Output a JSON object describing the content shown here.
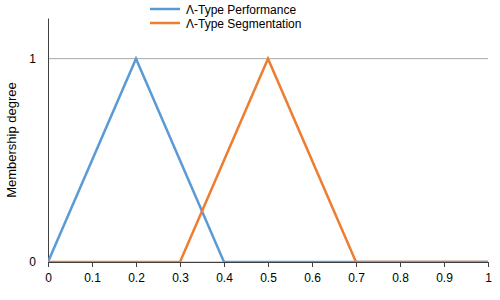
{
  "chart_data": {
    "type": "line",
    "y_label": "Membership degree",
    "series": [
      {
        "name": "Λ-Type Performance",
        "color": "#5b9bd5",
        "x": [
          0,
          0.2,
          0.4,
          1
        ],
        "values": [
          0,
          1,
          0,
          0
        ]
      },
      {
        "name": "Λ-Type Segmentation",
        "color": "#ed7d31",
        "x": [
          0,
          0.3,
          0.5,
          0.7,
          1
        ],
        "values": [
          0,
          0,
          1,
          0,
          0
        ]
      }
    ],
    "xlim": [
      0,
      1
    ],
    "xticks": [
      0,
      0.1,
      0.2,
      0.3,
      0.4,
      0.5,
      0.6,
      0.7,
      0.8,
      0.9,
      1
    ],
    "ylim": [
      0,
      1.2
    ],
    "yticks": [
      0,
      1
    ],
    "grid": true,
    "legend": "top"
  }
}
